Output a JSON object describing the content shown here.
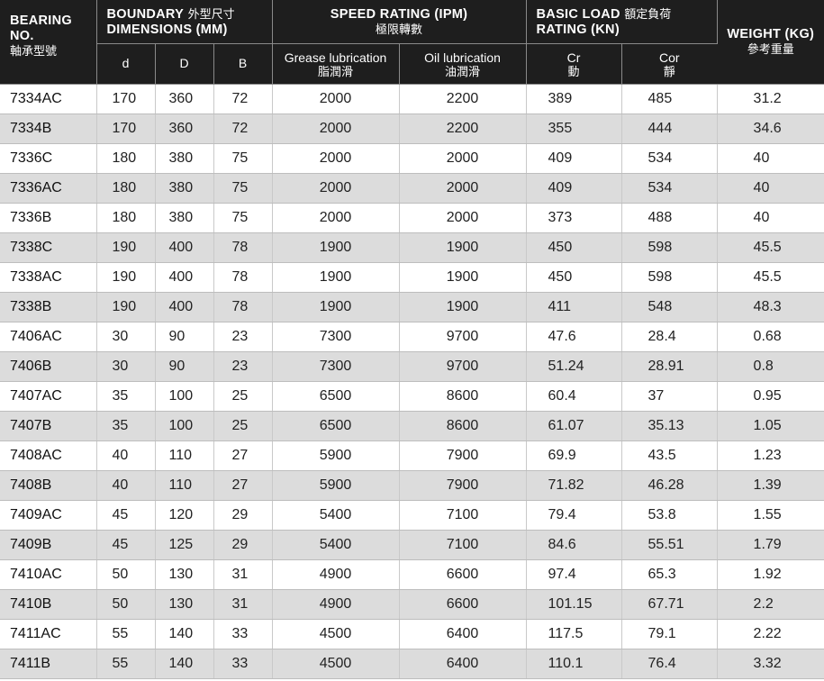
{
  "header": {
    "bearing_no": "BEARING NO.",
    "bearing_no_zh": "軸承型號",
    "boundary_en1": "BOUNDARY",
    "boundary_zh": "外型尺寸",
    "boundary_en2": "DIMENSIONS (MM)",
    "speed_en": "SPEED RATING (IPM)",
    "speed_zh": "極限轉數",
    "load_en1": "BASIC LOAD",
    "load_zh": "額定負荷",
    "load_en2": "RATING (KN)",
    "weight_en": "WEIGHT (KG)",
    "weight_zh": "參考重量",
    "col_d": "d",
    "col_D": "D",
    "col_B": "B",
    "grease": "Grease lubrication",
    "grease_zh": "脂潤滑",
    "oil": "Oil lubrication",
    "oil_zh": "油潤滑",
    "cr": "Cr",
    "cr_zh": "動",
    "cor": "Cor",
    "cor_zh": "靜"
  },
  "rows": [
    {
      "no": "7334AC",
      "d": "170",
      "D": "360",
      "B": "72",
      "grease": "2000",
      "oil": "2200",
      "cr": "389",
      "cor": "485",
      "weight": "31.2"
    },
    {
      "no": "7334B",
      "d": "170",
      "D": "360",
      "B": "72",
      "grease": "2000",
      "oil": "2200",
      "cr": "355",
      "cor": "444",
      "weight": "34.6"
    },
    {
      "no": "7336C",
      "d": "180",
      "D": "380",
      "B": "75",
      "grease": "2000",
      "oil": "2000",
      "cr": "409",
      "cor": "534",
      "weight": "40"
    },
    {
      "no": "7336AC",
      "d": "180",
      "D": "380",
      "B": "75",
      "grease": "2000",
      "oil": "2000",
      "cr": "409",
      "cor": "534",
      "weight": "40"
    },
    {
      "no": "7336B",
      "d": "180",
      "D": "380",
      "B": "75",
      "grease": "2000",
      "oil": "2000",
      "cr": "373",
      "cor": "488",
      "weight": "40"
    },
    {
      "no": "7338C",
      "d": "190",
      "D": "400",
      "B": "78",
      "grease": "1900",
      "oil": "1900",
      "cr": "450",
      "cor": "598",
      "weight": "45.5"
    },
    {
      "no": "7338AC",
      "d": "190",
      "D": "400",
      "B": "78",
      "grease": "1900",
      "oil": "1900",
      "cr": "450",
      "cor": "598",
      "weight": "45.5"
    },
    {
      "no": "7338B",
      "d": "190",
      "D": "400",
      "B": "78",
      "grease": "1900",
      "oil": "1900",
      "cr": "411",
      "cor": "548",
      "weight": "48.3"
    },
    {
      "no": "7406AC",
      "d": "30",
      "D": "90",
      "B": "23",
      "grease": "7300",
      "oil": "9700",
      "cr": "47.6",
      "cor": "28.4",
      "weight": "0.68"
    },
    {
      "no": "7406B",
      "d": "30",
      "D": "90",
      "B": "23",
      "grease": "7300",
      "oil": "9700",
      "cr": "51.24",
      "cor": "28.91",
      "weight": "0.8"
    },
    {
      "no": "7407AC",
      "d": "35",
      "D": "100",
      "B": "25",
      "grease": "6500",
      "oil": "8600",
      "cr": "60.4",
      "cor": "37",
      "weight": "0.95"
    },
    {
      "no": "7407B",
      "d": "35",
      "D": "100",
      "B": "25",
      "grease": "6500",
      "oil": "8600",
      "cr": "61.07",
      "cor": "35.13",
      "weight": "1.05"
    },
    {
      "no": "7408AC",
      "d": "40",
      "D": "110",
      "B": "27",
      "grease": "5900",
      "oil": "7900",
      "cr": "69.9",
      "cor": "43.5",
      "weight": "1.23"
    },
    {
      "no": "7408B",
      "d": "40",
      "D": "110",
      "B": "27",
      "grease": "5900",
      "oil": "7900",
      "cr": "71.82",
      "cor": "46.28",
      "weight": "1.39"
    },
    {
      "no": "7409AC",
      "d": "45",
      "D": "120",
      "B": "29",
      "grease": "5400",
      "oil": "7100",
      "cr": "79.4",
      "cor": "53.8",
      "weight": "1.55"
    },
    {
      "no": "7409B",
      "d": "45",
      "D": "125",
      "B": "29",
      "grease": "5400",
      "oil": "7100",
      "cr": "84.6",
      "cor": "55.51",
      "weight": "1.79"
    },
    {
      "no": "7410AC",
      "d": "50",
      "D": "130",
      "B": "31",
      "grease": "4900",
      "oil": "6600",
      "cr": "97.4",
      "cor": "65.3",
      "weight": "1.92"
    },
    {
      "no": "7410B",
      "d": "50",
      "D": "130",
      "B": "31",
      "grease": "4900",
      "oil": "6600",
      "cr": "101.15",
      "cor": "67.71",
      "weight": "2.2"
    },
    {
      "no": "7411AC",
      "d": "55",
      "D": "140",
      "B": "33",
      "grease": "4500",
      "oil": "6400",
      "cr": "117.5",
      "cor": "79.1",
      "weight": "2.22"
    },
    {
      "no": "7411B",
      "d": "55",
      "D": "140",
      "B": "33",
      "grease": "4500",
      "oil": "6400",
      "cr": "110.1",
      "cor": "76.4",
      "weight": "3.32"
    }
  ]
}
